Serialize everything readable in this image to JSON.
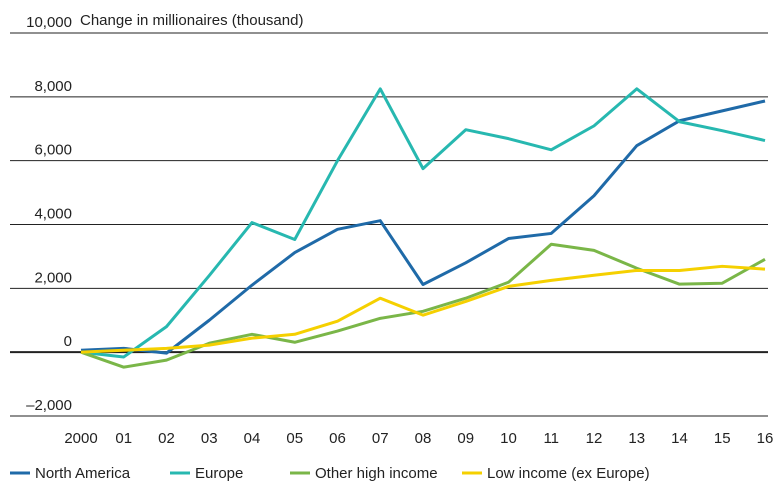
{
  "chart_data": {
    "type": "line",
    "title": "Change in millionaires (thousand)",
    "categories": [
      "2000",
      "01",
      "02",
      "03",
      "04",
      "05",
      "06",
      "07",
      "08",
      "09",
      "10",
      "11",
      "12",
      "13",
      "14",
      "15",
      "16"
    ],
    "series": [
      {
        "name": "North America",
        "color": "#1f6aa8",
        "values": [
          60,
          120,
          -30,
          1000,
          2100,
          3120,
          3850,
          4120,
          2120,
          2800,
          3560,
          3720,
          4900,
          6470,
          7250,
          7560,
          7870
        ]
      },
      {
        "name": "Europe",
        "color": "#27b8b0",
        "values": [
          0,
          -150,
          800,
          2400,
          4060,
          3530,
          6000,
          8250,
          5750,
          6970,
          6690,
          6340,
          7090,
          8250,
          7220,
          6940,
          6630
        ]
      },
      {
        "name": "Other high income",
        "color": "#7ab648",
        "values": [
          0,
          -470,
          -250,
          280,
          560,
          310,
          660,
          1060,
          1280,
          1690,
          2190,
          3380,
          3190,
          2630,
          2130,
          2160,
          2910
        ]
      },
      {
        "name": "Low income (ex Europe)",
        "color": "#f5d000",
        "values": [
          0,
          60,
          120,
          220,
          440,
          560,
          970,
          1690,
          1160,
          1590,
          2060,
          2250,
          2410,
          2560,
          2560,
          2690,
          2600
        ]
      }
    ],
    "ylim": [
      -2000,
      10000
    ],
    "yticks": [
      {
        "value": -2000,
        "label": "–2,000"
      },
      0,
      {
        "value": 2000,
        "label": "2,000"
      },
      {
        "value": 4000,
        "label": "4,000"
      },
      {
        "value": 6000,
        "label": "6,000"
      },
      {
        "value": 8000,
        "label": "8,000"
      },
      {
        "value": 10000,
        "label": "10,000"
      }
    ],
    "grid": true,
    "legend": "bottom"
  }
}
